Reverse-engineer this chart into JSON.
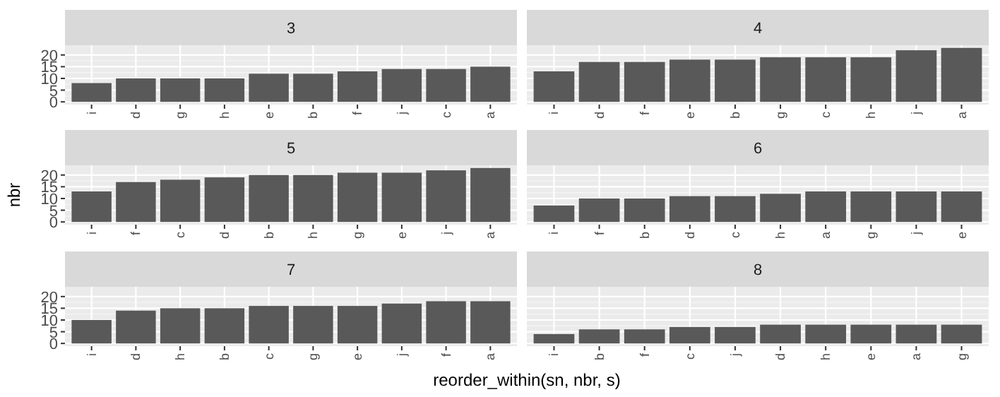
{
  "chart_data": [
    {
      "type": "bar",
      "title": "3",
      "categories": [
        "i",
        "d",
        "g",
        "h",
        "e",
        "b",
        "f",
        "j",
        "c",
        "a"
      ],
      "values": [
        8,
        10,
        10,
        10,
        12,
        12,
        13,
        14,
        14,
        15
      ],
      "color": "#595959",
      "ylim": [
        -1.15,
        24.15
      ],
      "yticks": [
        0,
        5,
        10,
        15,
        20
      ],
      "grid": true
    },
    {
      "type": "bar",
      "title": "4",
      "categories": [
        "i",
        "d",
        "f",
        "e",
        "b",
        "g",
        "c",
        "h",
        "j",
        "a"
      ],
      "values": [
        13,
        17,
        17,
        18,
        18,
        19,
        19,
        19,
        22,
        23
      ],
      "color": "#595959",
      "ylim": [
        -1.15,
        24.15
      ],
      "yticks": [
        0,
        5,
        10,
        15,
        20
      ],
      "grid": true,
      "tick_labels": "x"
    },
    {
      "type": "bar",
      "title": "5",
      "ylabel": "nbr",
      "categories": [
        "i",
        "f",
        "c",
        "d",
        "b",
        "h",
        "g",
        "e",
        "j",
        "a"
      ],
      "values": [
        13,
        17,
        18,
        19,
        20,
        20,
        21,
        21,
        22,
        23
      ],
      "color": "#595959",
      "ylim": [
        -1.15,
        24.15
      ],
      "yticks": [
        0,
        5,
        10,
        15,
        20
      ],
      "grid": true
    },
    {
      "type": "bar",
      "title": "6",
      "categories": [
        "i",
        "f",
        "b",
        "d",
        "c",
        "h",
        "a",
        "g",
        "j",
        "e"
      ],
      "values": [
        7,
        10,
        10,
        11,
        11,
        12,
        13,
        13,
        13,
        13
      ],
      "color": "#595959",
      "ylim": [
        -1.15,
        24.15
      ],
      "yticks": [
        0,
        5,
        10,
        15,
        20
      ],
      "grid": true,
      "tick_labels": "x"
    },
    {
      "type": "bar",
      "title": "7",
      "xlabel": "reorder_within(sn, nbr, s)",
      "categories": [
        "i",
        "d",
        "h",
        "b",
        "c",
        "g",
        "e",
        "j",
        "f",
        "a"
      ],
      "values": [
        10,
        14,
        15,
        15,
        16,
        16,
        16,
        17,
        18,
        18
      ],
      "color": "#595959",
      "ylim": [
        -1.15,
        24.15
      ],
      "yticks": [
        0,
        5,
        10,
        15,
        20
      ],
      "grid": true
    },
    {
      "type": "bar",
      "title": "8",
      "categories": [
        "i",
        "b",
        "f",
        "c",
        "j",
        "d",
        "h",
        "e",
        "a",
        "g"
      ],
      "values": [
        4,
        6,
        6,
        7,
        7,
        8,
        8,
        8,
        8,
        8
      ],
      "color": "#595959",
      "ylim": [
        -1.15,
        24.15
      ],
      "yticks": [
        0,
        5,
        10,
        15,
        20
      ],
      "grid": true,
      "tick_labels": "x"
    }
  ]
}
